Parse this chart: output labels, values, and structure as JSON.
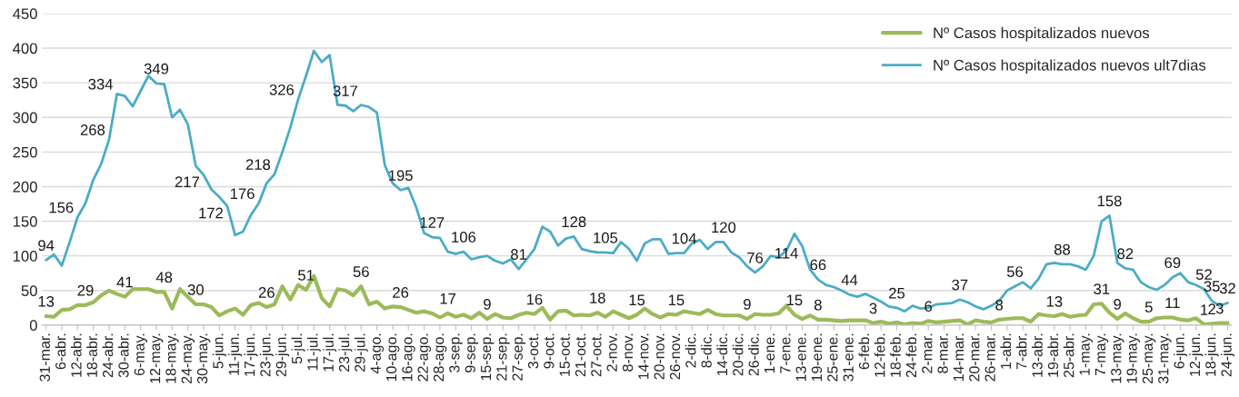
{
  "chart_data": {
    "type": "line",
    "categories": [
      "31-mar.",
      null,
      "6-abr.",
      null,
      "12-abr.",
      null,
      "18-abr.",
      null,
      "24-abr.",
      null,
      "30-abr.",
      null,
      "6-may.",
      null,
      "12-may.",
      null,
      "18-may.",
      null,
      "24-may.",
      null,
      "30-may.",
      null,
      "5-jun.",
      null,
      "11-jun.",
      null,
      "17-jun.",
      null,
      "23-jun.",
      null,
      "29-jun.",
      null,
      "5-jul.",
      null,
      "11-jul.",
      null,
      "17-jul.",
      null,
      "23-jul.",
      null,
      "29-jul.",
      null,
      "4-ago.",
      null,
      "10-ago.",
      null,
      "16-ago.",
      null,
      "22-ago.",
      null,
      "28-ago.",
      null,
      "3-sep.",
      null,
      "9-sep.",
      null,
      "15-sep.",
      null,
      "21-sep.",
      null,
      "27-sep.",
      null,
      "3-oct.",
      null,
      "9-oct.",
      null,
      "15-oct.",
      null,
      "21-oct.",
      null,
      "27-oct.",
      null,
      "2-nov.",
      null,
      "8-nov.",
      null,
      "14-nov.",
      null,
      "20-nov.",
      null,
      "26-nov.",
      null,
      "2-dic.",
      null,
      "8-dic.",
      null,
      "14-dic.",
      null,
      "20-dic.",
      null,
      "26-dic.",
      null,
      "1-ene.",
      null,
      "7-ene.",
      null,
      "13-ene.",
      null,
      "19-ene.",
      null,
      "25-ene.",
      null,
      "31-ene.",
      null,
      "6-feb.",
      null,
      "12-feb.",
      null,
      "18-feb.",
      null,
      "24-feb.",
      null,
      "2-mar.",
      null,
      "8-mar.",
      null,
      "14-mar.",
      null,
      "20-mar.",
      null,
      "26-mar.",
      null,
      "1-abr.",
      null,
      "7-abr.",
      null,
      "13-abr.",
      null,
      "19-abr.",
      null,
      "25-abr.",
      null,
      "1-may.",
      null,
      "7-may.",
      null,
      "13-may.",
      null,
      "19-may.",
      null,
      "25-may.",
      null,
      "31-may.",
      null,
      "6-jun.",
      null,
      "12-jun.",
      null,
      "18-jun.",
      null,
      "24-jun."
    ],
    "series": [
      {
        "name": "Nº Casos hospitalizados nuevos",
        "color": "#9bbb59",
        "values": [
          13,
          12,
          22,
          23,
          29,
          29,
          33,
          43,
          50,
          45,
          41,
          52,
          52,
          52,
          48,
          48,
          24,
          52,
          41,
          30,
          30,
          26,
          14,
          20,
          24,
          15,
          29,
          32,
          26,
          30,
          56,
          37,
          58,
          51,
          71,
          39,
          27,
          52,
          50,
          43,
          56,
          30,
          34,
          24,
          27,
          26,
          22,
          18,
          20,
          17,
          11,
          17,
          12,
          15,
          10,
          18,
          9,
          16,
          11,
          10,
          15,
          18,
          16,
          25,
          8,
          20,
          21,
          14,
          15,
          14,
          18,
          12,
          20,
          15,
          10,
          15,
          24,
          16,
          11,
          16,
          15,
          20,
          18,
          16,
          22,
          16,
          14,
          14,
          14,
          9,
          16,
          15,
          15,
          17,
          28,
          15,
          9,
          14,
          8,
          8,
          7,
          6,
          7,
          7,
          7,
          3,
          5,
          2,
          4,
          1,
          3,
          2,
          6,
          4,
          5,
          6,
          7,
          1,
          7,
          5,
          4,
          8,
          9,
          10,
          10,
          5,
          16,
          14,
          13,
          16,
          12,
          14,
          15,
          30,
          31,
          18,
          9,
          17,
          10,
          5,
          5,
          10,
          11,
          11,
          8,
          7,
          10,
          1,
          2,
          3,
          3
        ],
        "value_labels": [
          "13",
          null,
          null,
          null,
          null,
          "29",
          null,
          null,
          null,
          null,
          "41",
          null,
          null,
          null,
          null,
          "48",
          null,
          null,
          null,
          "30",
          null,
          null,
          null,
          null,
          null,
          null,
          null,
          null,
          "26",
          null,
          null,
          null,
          null,
          "51",
          null,
          null,
          null,
          null,
          null,
          null,
          "56",
          null,
          null,
          null,
          null,
          "26",
          null,
          null,
          null,
          null,
          null,
          "17",
          null,
          null,
          null,
          null,
          "9",
          null,
          null,
          null,
          null,
          null,
          "16",
          null,
          null,
          null,
          null,
          null,
          null,
          null,
          "18",
          null,
          null,
          null,
          null,
          "15",
          null,
          null,
          null,
          null,
          "15",
          null,
          null,
          null,
          null,
          null,
          null,
          null,
          null,
          "9",
          null,
          null,
          null,
          null,
          null,
          "15",
          null,
          null,
          "8",
          null,
          null,
          null,
          null,
          null,
          null,
          "3",
          null,
          null,
          null,
          null,
          null,
          null,
          "6",
          null,
          null,
          null,
          null,
          null,
          null,
          null,
          null,
          "8",
          null,
          null,
          null,
          null,
          null,
          null,
          "13",
          null,
          null,
          null,
          null,
          null,
          "31",
          null,
          "9",
          null,
          null,
          null,
          "5",
          null,
          null,
          "11",
          null,
          null,
          null,
          "1",
          "2",
          "3",
          null
        ]
      },
      {
        "name": "Nº Casos hospitalizados nuevos ult7dias",
        "color": "#4bacc6",
        "values": [
          94,
          102,
          86,
          120,
          156,
          176,
          210,
          233,
          268,
          334,
          331,
          316,
          338,
          360,
          349,
          348,
          300,
          311,
          290,
          230,
          217,
          196,
          185,
          172,
          130,
          135,
          159,
          176,
          205,
          218,
          250,
          285,
          326,
          360,
          396,
          380,
          390,
          318,
          317,
          309,
          318,
          315,
          307,
          231,
          205,
          195,
          198,
          170,
          133,
          127,
          126,
          106,
          103,
          106,
          95,
          98,
          100,
          93,
          89,
          95,
          81,
          95,
          110,
          142,
          135,
          115,
          125,
          128,
          110,
          107,
          105,
          105,
          104,
          120,
          110,
          93,
          118,
          124,
          124,
          103,
          104,
          104,
          118,
          123,
          110,
          120,
          120,
          105,
          98,
          85,
          76,
          85,
          100,
          98,
          108,
          132,
          114,
          80,
          66,
          58,
          55,
          50,
          44,
          41,
          45,
          40,
          34,
          27,
          25,
          20,
          28,
          24,
          25,
          30,
          31,
          32,
          37,
          33,
          27,
          23,
          28,
          35,
          50,
          56,
          62,
          53,
          67,
          88,
          90,
          88,
          88,
          85,
          80,
          100,
          150,
          158,
          90,
          82,
          80,
          62,
          55,
          51,
          58,
          69,
          75,
          62,
          58,
          52,
          35,
          28,
          32
        ],
        "value_labels": [
          "94",
          null,
          null,
          null,
          "156",
          null,
          null,
          null,
          "268",
          "334",
          null,
          null,
          null,
          null,
          "349",
          null,
          null,
          null,
          null,
          null,
          "217",
          null,
          null,
          "172",
          null,
          null,
          null,
          "176",
          null,
          "218",
          null,
          null,
          "326",
          null,
          null,
          null,
          null,
          null,
          "317",
          null,
          null,
          null,
          null,
          null,
          null,
          "195",
          null,
          null,
          null,
          "127",
          null,
          null,
          null,
          "106",
          null,
          null,
          null,
          null,
          null,
          null,
          "81",
          null,
          null,
          null,
          null,
          null,
          null,
          "128",
          null,
          null,
          null,
          "105",
          null,
          null,
          null,
          null,
          null,
          null,
          null,
          null,
          null,
          "104",
          null,
          null,
          null,
          null,
          "120",
          null,
          null,
          null,
          "76",
          null,
          null,
          null,
          null,
          null,
          "114",
          null,
          "66",
          null,
          null,
          null,
          "44",
          null,
          null,
          null,
          null,
          null,
          "25",
          null,
          null,
          null,
          null,
          null,
          null,
          null,
          "37",
          null,
          null,
          null,
          null,
          null,
          null,
          "56",
          null,
          null,
          null,
          null,
          null,
          "88",
          null,
          null,
          null,
          null,
          null,
          "158",
          null,
          "82",
          null,
          null,
          null,
          null,
          null,
          "69",
          null,
          null,
          null,
          "52",
          "35",
          null,
          "32"
        ]
      }
    ],
    "ylim": [
      0,
      450
    ],
    "yticks": [
      0,
      50,
      100,
      150,
      200,
      250,
      300,
      350,
      400,
      450
    ],
    "grid": "y",
    "legend": "top right"
  }
}
